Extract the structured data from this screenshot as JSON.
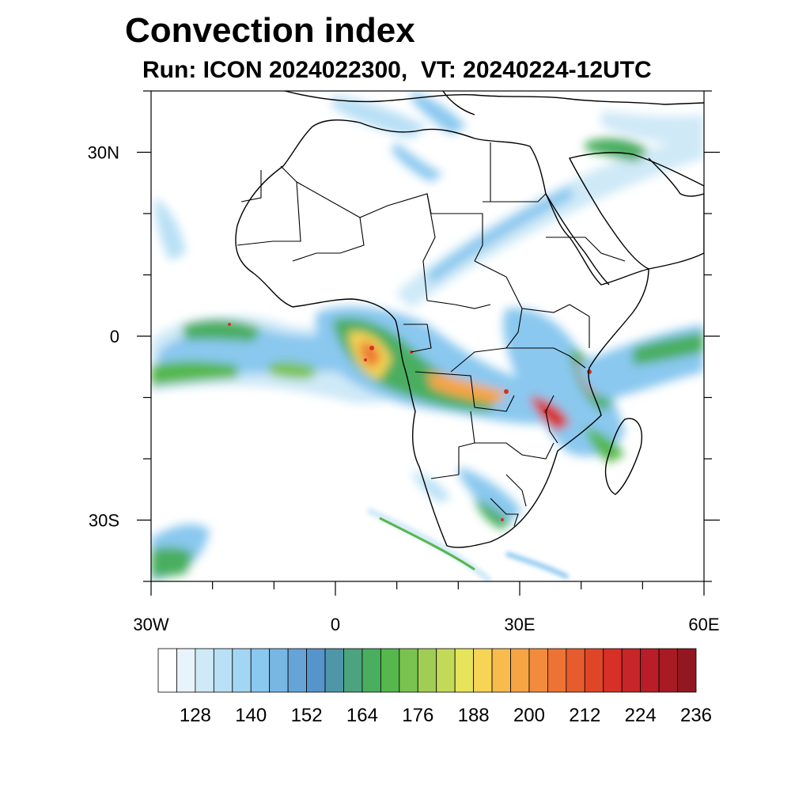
{
  "title": "Convection index",
  "subtitle": "Run: ICON 2024022300,  VT: 20240224-12UTC",
  "map": {
    "region": "Africa",
    "lon_range": [
      -30,
      60
    ],
    "lat_range": [
      -40,
      40
    ],
    "lat_ticks": [
      {
        "value": 30,
        "label": "30N"
      },
      {
        "value": 0,
        "label": "0"
      },
      {
        "value": -30,
        "label": "30S"
      }
    ],
    "lon_ticks": [
      {
        "value": -30,
        "label": "30W"
      },
      {
        "value": 0,
        "label": "0"
      },
      {
        "value": 30,
        "label": "30E"
      },
      {
        "value": 60,
        "label": "60E"
      }
    ]
  },
  "colorbar": {
    "levels": [
      120,
      124,
      128,
      132,
      136,
      140,
      144,
      148,
      152,
      156,
      160,
      164,
      168,
      172,
      176,
      180,
      184,
      188,
      192,
      196,
      200,
      204,
      208,
      212,
      216,
      220,
      224,
      228,
      232,
      236
    ],
    "colors": [
      "#ffffff",
      "#e8f4fb",
      "#cfe9f7",
      "#b9e0f5",
      "#a3d6f3",
      "#8ac8ef",
      "#78b6e4",
      "#66a4d8",
      "#5694cc",
      "#4f97a8",
      "#4ca37f",
      "#4aae5f",
      "#55b74c",
      "#79c250",
      "#a0ce55",
      "#c3da58",
      "#e6e45a",
      "#f6d455",
      "#f7bc4c",
      "#f6a444",
      "#f28c3c",
      "#ec7333",
      "#e65c2d",
      "#df4628",
      "#d73027",
      "#c82528",
      "#b91d27",
      "#a81a24",
      "#931720"
    ],
    "labels": [
      "128",
      "140",
      "152",
      "164",
      "176",
      "188",
      "200",
      "212",
      "224",
      "236"
    ]
  }
}
